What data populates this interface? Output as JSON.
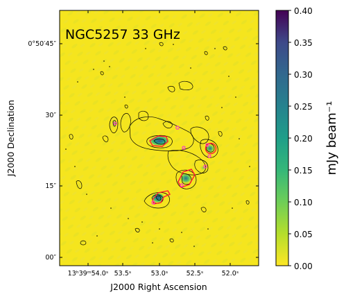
{
  "figure": {
    "title": "NGC5257 33 GHz",
    "xlabel": "J2000 Right Ascension",
    "ylabel": "J2000 Declination",
    "x_ticks": [
      "13ʰ39ᵐ54.0ˢ",
      "53.5ˢ",
      "53.0ˢ",
      "52.5ˢ",
      "52.0ˢ"
    ],
    "y_ticks": [
      "0°50′45″",
      "30″",
      "15″",
      "00″"
    ],
    "colorbar": {
      "label": "mJy beam⁻¹",
      "ticks": [
        "0.40",
        "0.35",
        "0.30",
        "0.25",
        "0.20",
        "0.15",
        "0.10",
        "0.05",
        "0.00"
      ],
      "min": 0.0,
      "max": 0.4,
      "colormap": "viridis_r"
    }
  },
  "colors": {
    "background_map": "#f5e51e",
    "contour": "#000000",
    "region_outline": "#ff1a33",
    "region_markers": "#ff33cc"
  }
}
